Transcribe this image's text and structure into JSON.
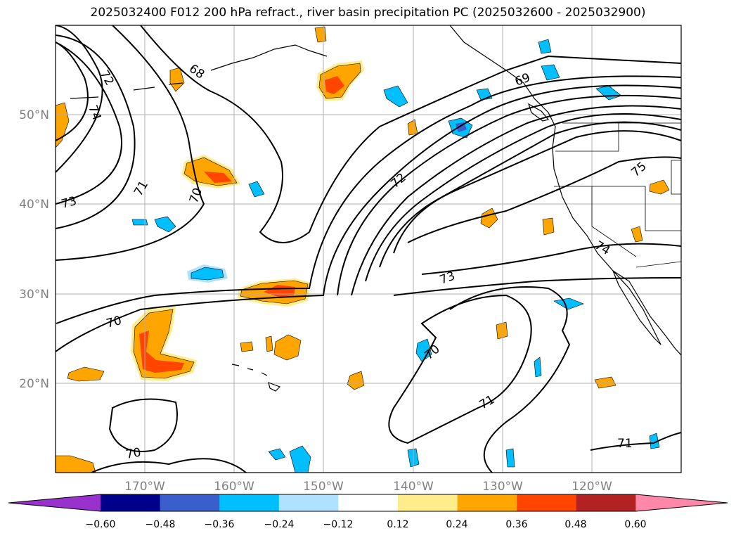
{
  "title": "2025032400 F012 200 hPa refract., river basin precipitation PC (2025032600 - 2025032900)",
  "axes": {
    "lon_labels": [
      "170°W",
      "160°W",
      "150°W",
      "140°W",
      "130°W",
      "120°W"
    ],
    "lat_labels": [
      "50°N",
      "40°N",
      "30°N",
      "20°N"
    ]
  },
  "contour_labels": [
    "72",
    "74",
    "68",
    "69",
    "70",
    "71",
    "73",
    "72",
    "73",
    "70",
    "70",
    "74",
    "75",
    "71",
    "71",
    "70"
  ],
  "colorbar": {
    "ticks": [
      "−0.60",
      "−0.48",
      "−0.36",
      "−0.24",
      "−0.12",
      "0.12",
      "0.24",
      "0.36",
      "0.48",
      "0.60"
    ],
    "colors": [
      "#9932cc",
      "#00008b",
      "#3a5fcd",
      "#00bfff",
      "#b0e2ff",
      "#ffffff",
      "#ffec8b",
      "#ffa500",
      "#ff4500",
      "#b22222",
      "#ff88aa"
    ]
  },
  "colors": {
    "gridline": "#b0b0b0",
    "tick_label": "#808080",
    "contour": "#000000"
  }
}
